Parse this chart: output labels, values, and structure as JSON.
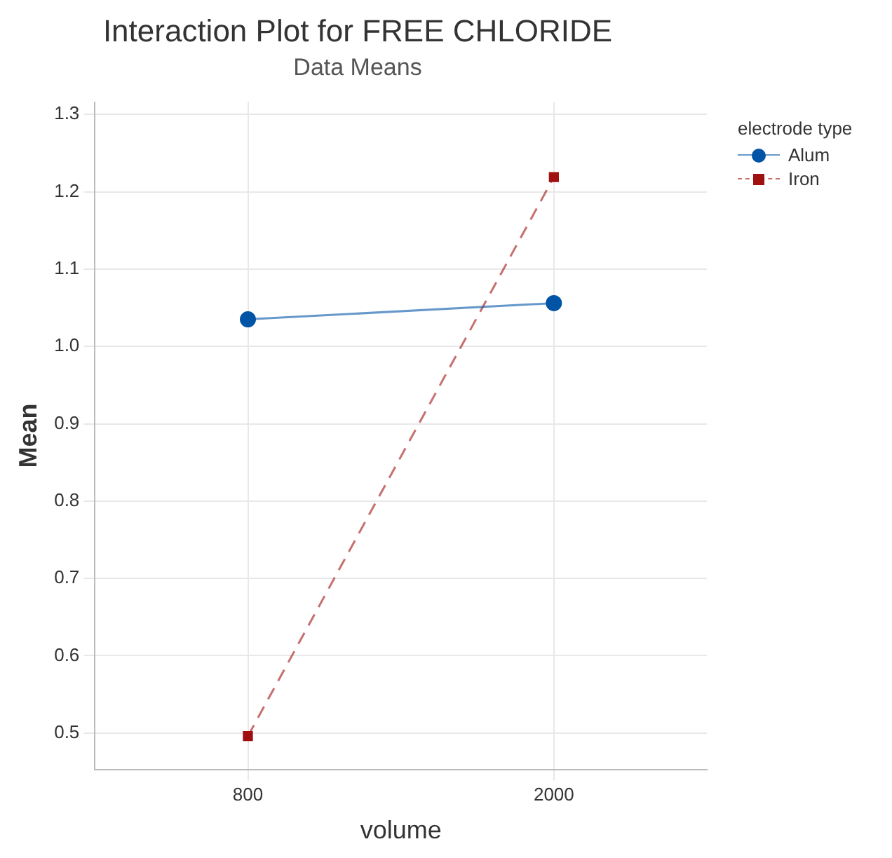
{
  "chart_data": {
    "type": "line",
    "title": "Interaction Plot for FREE CHLORIDE",
    "subtitle": "Data Means",
    "xlabel": "volume",
    "ylabel": "Mean",
    "legend_title": "electrode type",
    "categories": [
      "800",
      "2000"
    ],
    "ylim": [
      0.453,
      1.316
    ],
    "yticks": [
      0.5,
      0.6,
      0.7,
      0.8,
      0.9,
      {
        "value": 1,
        "label": "1.0"
      },
      1.1,
      1.2,
      1.3
    ],
    "grid": true,
    "legend": "top right",
    "series": [
      {
        "name": "Alum",
        "color": "#0054a6",
        "values": [
          1.035,
          1.056
        ],
        "marker": "circle",
        "line_style": "solid"
      },
      {
        "name": "Iron",
        "color": "#a01010",
        "values": [
          0.496,
          1.219
        ],
        "marker": "square",
        "line_style": "dashed"
      }
    ]
  }
}
